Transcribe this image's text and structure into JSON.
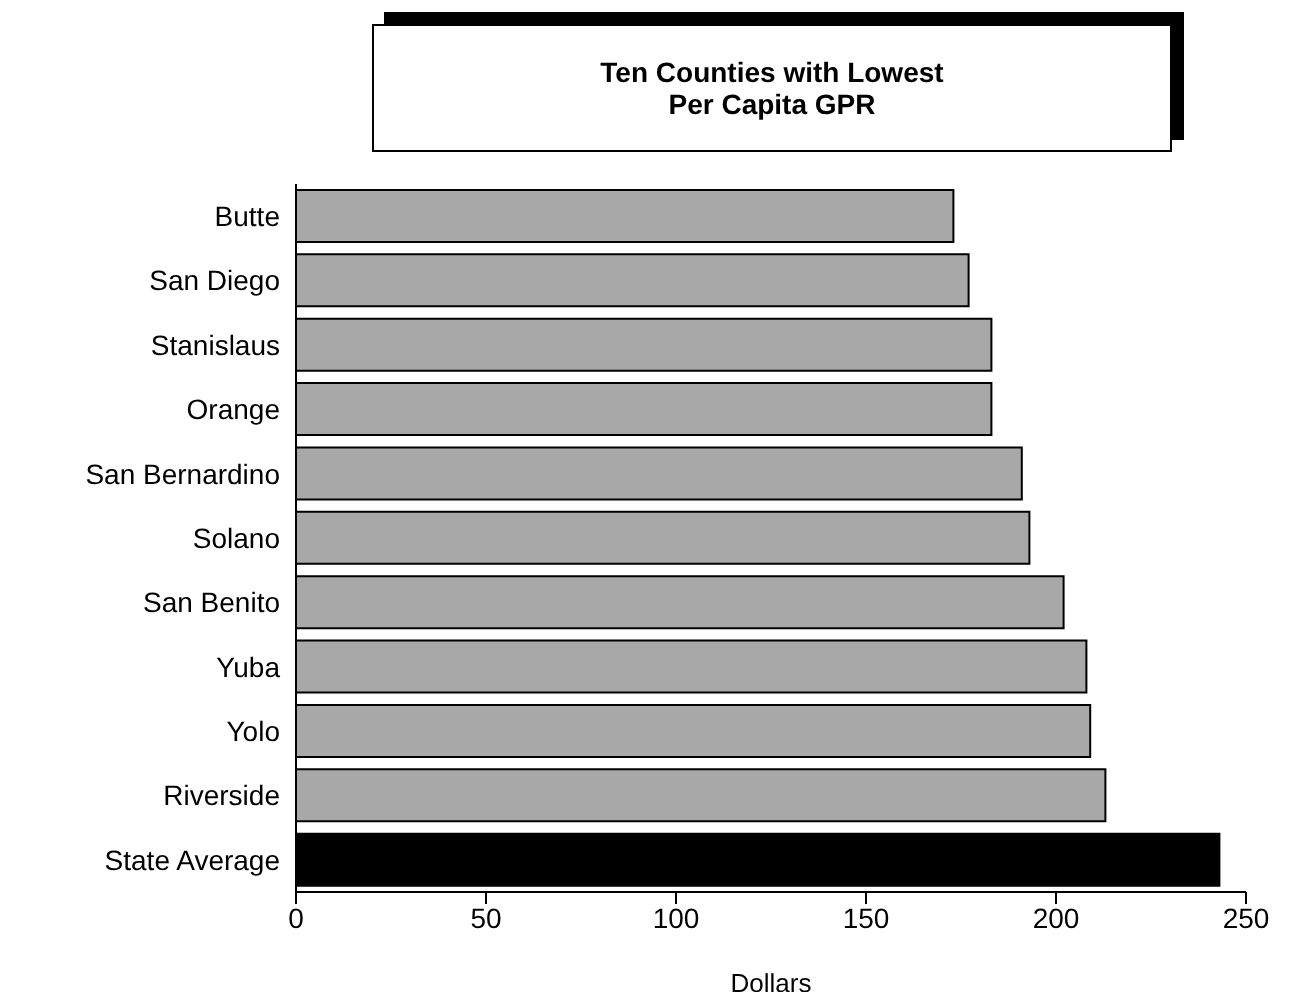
{
  "chart_data": {
    "type": "bar",
    "orientation": "horizontal",
    "title": "Ten Counties with Lowest\nPer Capita GPR",
    "xlabel": "Dollars",
    "categories": [
      "Butte",
      "San Diego",
      "Stanislaus",
      "Orange",
      "San Bernardino",
      "Solano",
      "San Benito",
      "Yuba",
      "Yolo",
      "Riverside",
      "State Average"
    ],
    "values": [
      173,
      177,
      183,
      183,
      191,
      193,
      202,
      208,
      209,
      213,
      243
    ],
    "colors": [
      "#a8a8a8",
      "#a8a8a8",
      "#a8a8a8",
      "#a8a8a8",
      "#a8a8a8",
      "#a8a8a8",
      "#a8a8a8",
      "#a8a8a8",
      "#a8a8a8",
      "#a8a8a8",
      "#000000"
    ],
    "xlim": [
      0,
      250
    ],
    "xticks": [
      0,
      50,
      100,
      150,
      200,
      250
    ],
    "grid": false,
    "legend": false
  }
}
